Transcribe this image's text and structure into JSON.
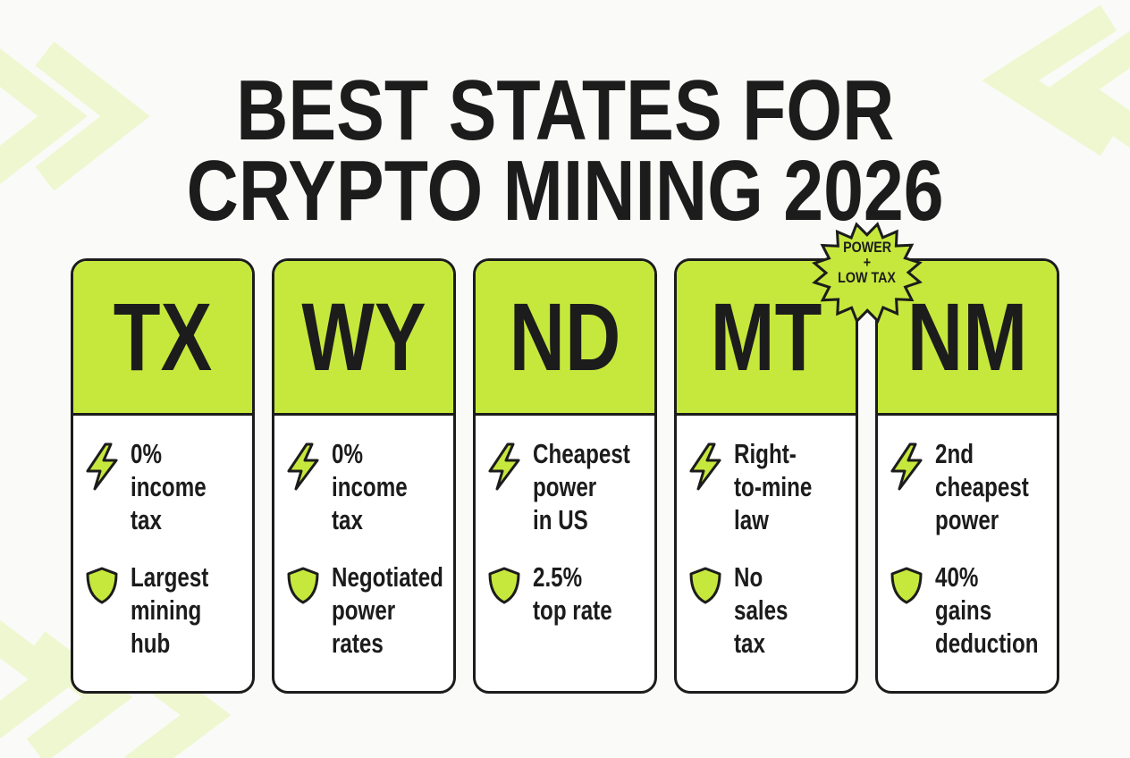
{
  "title": {
    "lines": [
      "BEST STATES FOR",
      "CRYPTO MINING 2026"
    ]
  },
  "badge": {
    "lines": [
      "POWER",
      "+",
      "LOW TAX"
    ]
  },
  "cards": [
    {
      "code": "TX",
      "items": [
        {
          "lines": [
            "0%",
            "income",
            "tax"
          ]
        },
        {
          "lines": [
            "Largest",
            "mining",
            "hub"
          ]
        }
      ]
    },
    {
      "code": "WY",
      "items": [
        {
          "lines": [
            "0%",
            "income",
            "tax"
          ]
        },
        {
          "lines": [
            "Negotiated",
            "power",
            "rates"
          ]
        }
      ]
    },
    {
      "code": "ND",
      "items": [
        {
          "lines": [
            "Cheapest",
            "power",
            "in US"
          ]
        },
        {
          "lines": [
            "2.5%",
            "top rate"
          ]
        }
      ]
    },
    {
      "code": "MT",
      "items": [
        {
          "lines": [
            "Right-",
            "to-mine",
            "law"
          ]
        },
        {
          "lines": [
            "No",
            "sales",
            "tax"
          ]
        }
      ]
    },
    {
      "code": "NM",
      "items": [
        {
          "lines": [
            "2nd",
            "cheapest",
            "power"
          ]
        },
        {
          "lines": [
            "40%",
            "gains",
            "deduction"
          ]
        }
      ]
    }
  ]
}
